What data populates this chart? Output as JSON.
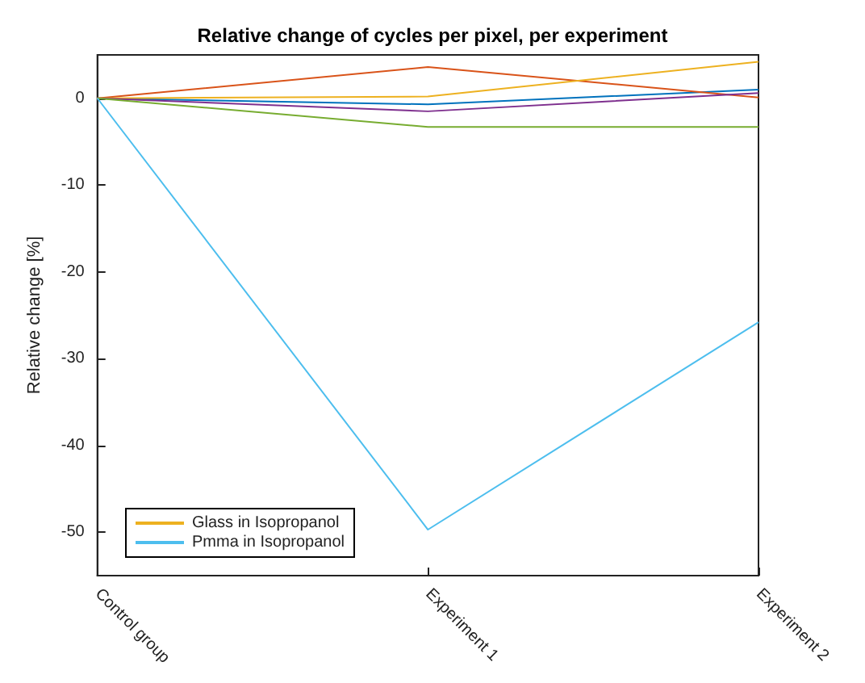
{
  "chart_data": {
    "type": "line",
    "title": "Relative change of cycles per pixel, per experiment",
    "ylabel": "Relative change [%]",
    "categories": [
      "Control group",
      "Experiment 1",
      "Experiment 2"
    ],
    "series": [
      {
        "color": "#0072bd",
        "values": [
          0,
          -0.7,
          1.0
        ]
      },
      {
        "color": "#d95319",
        "values": [
          0,
          3.6,
          0.1
        ]
      },
      {
        "name": "Glass in Isopropanol",
        "color": "#edb120",
        "values": [
          0,
          0.2,
          4.2
        ]
      },
      {
        "color": "#7e2f8e",
        "values": [
          0,
          -1.5,
          0.6
        ]
      },
      {
        "color": "#77ac30",
        "values": [
          0,
          -3.3,
          -3.3
        ]
      },
      {
        "name": "Pmma in Isopropanol",
        "color": "#4dbeee",
        "values": [
          0,
          -49.7,
          -25.8
        ]
      }
    ],
    "ylim": [
      -55,
      5
    ],
    "yticks": [
      -50,
      -40,
      -30,
      -20,
      -10,
      0
    ],
    "legend": "bottom left",
    "grid": false,
    "marker": "none",
    "line_style": "solid"
  }
}
